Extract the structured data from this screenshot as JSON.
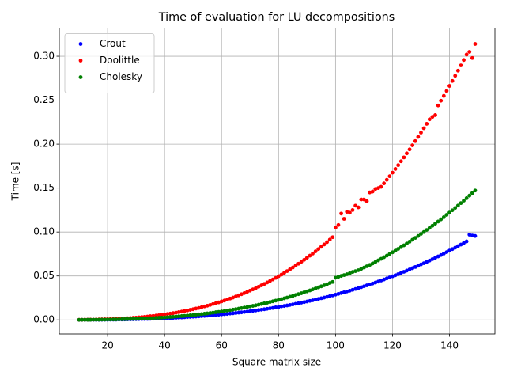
{
  "chart_data": {
    "type": "scatter",
    "title": "Time of evaluation for LU decompositions",
    "xlabel": "Square matrix size",
    "ylabel": "Time [s]",
    "x": [
      10,
      11,
      12,
      13,
      14,
      15,
      16,
      17,
      18,
      19,
      20,
      21,
      22,
      23,
      24,
      25,
      26,
      27,
      28,
      29,
      30,
      31,
      32,
      33,
      34,
      35,
      36,
      37,
      38,
      39,
      40,
      41,
      42,
      43,
      44,
      45,
      46,
      47,
      48,
      49,
      50,
      51,
      52,
      53,
      54,
      55,
      56,
      57,
      58,
      59,
      60,
      61,
      62,
      63,
      64,
      65,
      66,
      67,
      68,
      69,
      70,
      71,
      72,
      73,
      74,
      75,
      76,
      77,
      78,
      79,
      80,
      81,
      82,
      83,
      84,
      85,
      86,
      87,
      88,
      89,
      90,
      91,
      92,
      93,
      94,
      95,
      96,
      97,
      98,
      99,
      100,
      101,
      102,
      103,
      104,
      105,
      106,
      107,
      108,
      109,
      110,
      111,
      112,
      113,
      114,
      115,
      116,
      117,
      118,
      119,
      120,
      121,
      122,
      123,
      124,
      125,
      126,
      127,
      128,
      129,
      130,
      131,
      132,
      133,
      134,
      135,
      136,
      137,
      138,
      139,
      140,
      141,
      142,
      143,
      144,
      145,
      146,
      147,
      148,
      149
    ],
    "series": [
      {
        "name": "Crout",
        "color": "#0000ff",
        "values": [
          0.0,
          0.0,
          0.0,
          0.0001,
          0.0001,
          0.0001,
          0.0001,
          0.0001,
          0.0002,
          0.0002,
          0.0002,
          0.0003,
          0.0003,
          0.0003,
          0.0004,
          0.0004,
          0.0005,
          0.0006,
          0.0006,
          0.0007,
          0.0008,
          0.0009,
          0.0009,
          0.001,
          0.0011,
          0.0012,
          0.0013,
          0.0015,
          0.0016,
          0.0017,
          0.0018,
          0.002,
          0.0021,
          0.0023,
          0.0024,
          0.0026,
          0.0028,
          0.003,
          0.0032,
          0.0034,
          0.0036,
          0.0038,
          0.004,
          0.0043,
          0.0045,
          0.0048,
          0.005,
          0.0053,
          0.0056,
          0.0059,
          0.0062,
          0.0065,
          0.0068,
          0.0072,
          0.0075,
          0.0079,
          0.0083,
          0.0086,
          0.009,
          0.0094,
          0.0098,
          0.0103,
          0.0107,
          0.0112,
          0.0116,
          0.0121,
          0.0126,
          0.0131,
          0.0136,
          0.0142,
          0.0147,
          0.0153,
          0.0158,
          0.0164,
          0.017,
          0.0176,
          0.0183,
          0.0189,
          0.0196,
          0.0202,
          0.0209,
          0.0216,
          0.0223,
          0.0231,
          0.0238,
          0.0246,
          0.0254,
          0.0262,
          0.027,
          0.0278,
          0.0287,
          0.0296,
          0.0305,
          0.0314,
          0.0323,
          0.0332,
          0.0342,
          0.0352,
          0.0362,
          0.0372,
          0.0382,
          0.0393,
          0.0403,
          0.0414,
          0.0425,
          0.0436,
          0.0448,
          0.046,
          0.0472,
          0.0484,
          0.0496,
          0.0508,
          0.0521,
          0.0534,
          0.0547,
          0.0561,
          0.0574,
          0.0588,
          0.0602,
          0.0616,
          0.0631,
          0.0645,
          0.066,
          0.0675,
          0.0691,
          0.0706,
          0.0722,
          0.0738,
          0.0754,
          0.0771,
          0.0788,
          0.0805,
          0.0822,
          0.0839,
          0.0857,
          0.0875,
          0.0893,
          0.097,
          0.096,
          0.0955
        ]
      },
      {
        "name": "Doolittle",
        "color": "#ff0000",
        "values": [
          0.0001,
          0.0001,
          0.0002,
          0.0002,
          0.0003,
          0.0003,
          0.0004,
          0.0005,
          0.0006,
          0.0007,
          0.0008,
          0.0009,
          0.001,
          0.0012,
          0.0013,
          0.0015,
          0.0017,
          0.0019,
          0.0021,
          0.0024,
          0.0026,
          0.0029,
          0.0032,
          0.0035,
          0.0038,
          0.0042,
          0.0045,
          0.0049,
          0.0053,
          0.0058,
          0.0062,
          0.0067,
          0.0072,
          0.0077,
          0.0083,
          0.0088,
          0.0094,
          0.0101,
          0.0107,
          0.0114,
          0.0121,
          0.0129,
          0.0136,
          0.0144,
          0.0153,
          0.0161,
          0.017,
          0.018,
          0.0189,
          0.0199,
          0.021,
          0.022,
          0.0231,
          0.0243,
          0.0254,
          0.0266,
          0.0279,
          0.0292,
          0.0305,
          0.0319,
          0.0333,
          0.0347,
          0.0362,
          0.0377,
          0.0393,
          0.0409,
          0.0426,
          0.0443,
          0.046,
          0.0478,
          0.0497,
          0.0515,
          0.0535,
          0.0555,
          0.0575,
          0.0596,
          0.0617,
          0.0639,
          0.0661,
          0.0684,
          0.0707,
          0.0731,
          0.0755,
          0.078,
          0.0806,
          0.0832,
          0.0858,
          0.0885,
          0.0913,
          0.0941,
          0.105,
          0.108,
          0.121,
          0.115,
          0.123,
          0.122,
          0.125,
          0.13,
          0.128,
          0.137,
          0.137,
          0.135,
          0.145,
          0.146,
          0.149,
          0.15,
          0.1514,
          0.1554,
          0.1594,
          0.1635,
          0.1676,
          0.1718,
          0.1761,
          0.1805,
          0.1849,
          0.1895,
          0.194,
          0.1987,
          0.2034,
          0.2082,
          0.2131,
          0.2181,
          0.2231,
          0.2282,
          0.231,
          0.233,
          0.244,
          0.2494,
          0.2549,
          0.2605,
          0.2662,
          0.2719,
          0.2777,
          0.2836,
          0.2896,
          0.2957,
          0.3019,
          0.305,
          0.298,
          0.314
        ]
      },
      {
        "name": "Cholesky",
        "color": "#008000",
        "values": [
          0.0,
          0.0001,
          0.0001,
          0.0001,
          0.0001,
          0.0002,
          0.0002,
          0.0002,
          0.0003,
          0.0003,
          0.0004,
          0.0004,
          0.0005,
          0.0005,
          0.0006,
          0.0007,
          0.0008,
          0.0009,
          0.001,
          0.0011,
          0.0012,
          0.0013,
          0.0015,
          0.0016,
          0.0017,
          0.0019,
          0.0021,
          0.0023,
          0.0024,
          0.0026,
          0.0028,
          0.0031,
          0.0033,
          0.0035,
          0.0038,
          0.0041,
          0.0043,
          0.0046,
          0.0049,
          0.0052,
          0.0056,
          0.0059,
          0.0063,
          0.0066,
          0.007,
          0.0074,
          0.0078,
          0.0082,
          0.0087,
          0.0091,
          0.0096,
          0.0101,
          0.0106,
          0.0111,
          0.0117,
          0.0122,
          0.0128,
          0.0134,
          0.014,
          0.0146,
          0.0153,
          0.0159,
          0.0166,
          0.0173,
          0.018,
          0.0188,
          0.0195,
          0.0203,
          0.0211,
          0.0219,
          0.0228,
          0.0236,
          0.0245,
          0.0254,
          0.0264,
          0.0273,
          0.0283,
          0.0293,
          0.0303,
          0.0314,
          0.0324,
          0.0335,
          0.0347,
          0.0358,
          0.037,
          0.0382,
          0.0394,
          0.0406,
          0.0419,
          0.0432,
          0.048,
          0.049,
          0.05,
          0.051,
          0.052,
          0.053,
          0.0545,
          0.0555,
          0.0565,
          0.058,
          0.0595,
          0.061,
          0.0625,
          0.0642,
          0.0659,
          0.0677,
          0.0695,
          0.0713,
          0.0731,
          0.075,
          0.0769,
          0.0788,
          0.0808,
          0.0828,
          0.0848,
          0.0869,
          0.089,
          0.0912,
          0.0933,
          0.0955,
          0.0978,
          0.1,
          0.1023,
          0.1047,
          0.1071,
          0.1095,
          0.1119,
          0.1144,
          0.1169,
          0.1195,
          0.1221,
          0.1247,
          0.1274,
          0.1301,
          0.1329,
          0.1357,
          0.1385,
          0.1414,
          0.1443,
          0.1472
        ]
      }
    ],
    "xlim": [
      3.05,
      155.95
    ],
    "xticks": [
      20,
      40,
      60,
      80,
      100,
      120,
      140
    ],
    "ylim": [
      -0.016,
      0.332
    ],
    "yticks": [
      {
        "value": 0,
        "label": "0.00"
      },
      {
        "value": 0.05,
        "label": "0.05"
      },
      {
        "value": 0.1,
        "label": "0.10"
      },
      {
        "value": 0.15,
        "label": "0.15"
      },
      {
        "value": 0.2,
        "label": "0.20"
      },
      {
        "value": 0.25,
        "label": "0.25"
      },
      {
        "value": 0.3,
        "label": "0.30"
      }
    ],
    "grid": true,
    "legend": "upper left"
  }
}
